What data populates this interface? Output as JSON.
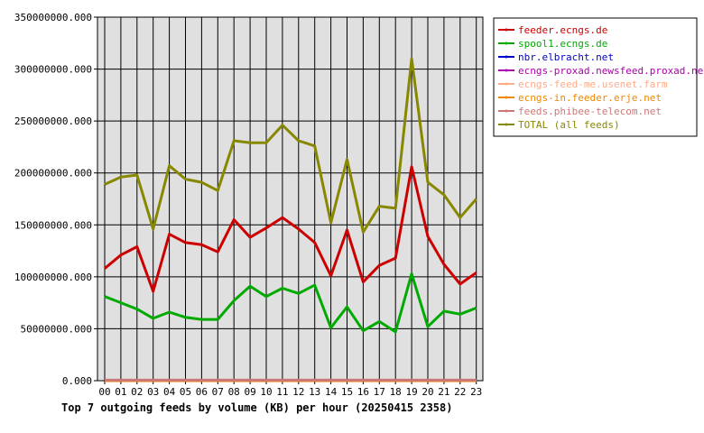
{
  "chart_data": {
    "type": "line",
    "title": "Top 7 outgoing feeds by volume (KB) per hour (20250415 2358)",
    "categories": [
      "00",
      "01",
      "02",
      "03",
      "04",
      "05",
      "06",
      "07",
      "08",
      "09",
      "10",
      "11",
      "12",
      "13",
      "14",
      "15",
      "16",
      "17",
      "18",
      "19",
      "20",
      "21",
      "22",
      "23"
    ],
    "y_ticks": [
      "0.000",
      "50000000.000",
      "100000000.000",
      "150000000.000",
      "200000000.000",
      "250000000.000",
      "300000000.000",
      "350000000.000"
    ],
    "ylim": [
      0,
      350000000
    ],
    "grid": true,
    "legend_position": "top-right",
    "series": [
      {
        "name": "feeder.ecngs.de",
        "color": "#cc0000",
        "values": [
          108000000,
          121000000,
          129000000,
          86000000,
          141000000,
          133000000,
          131000000,
          124000000,
          155000000,
          138000000,
          147000000,
          157000000,
          146000000,
          133000000,
          101000000,
          145000000,
          95000000,
          111000000,
          118000000,
          206000000,
          139000000,
          112000000,
          93000000,
          104000000
        ]
      },
      {
        "name": "spool1.ecngs.de",
        "color": "#00aa00",
        "values": [
          81000000,
          75000000,
          69000000,
          60000000,
          66000000,
          61000000,
          59000000,
          59000000,
          77000000,
          91000000,
          81000000,
          89000000,
          84000000,
          92000000,
          51000000,
          71000000,
          48000000,
          57000000,
          47000000,
          103000000,
          52000000,
          67000000,
          64000000,
          70000000
        ]
      },
      {
        "name": "nbr.elbracht.net",
        "color": "#0000cc",
        "values": [
          0,
          0,
          0,
          0,
          0,
          0,
          0,
          0,
          0,
          0,
          0,
          0,
          0,
          0,
          0,
          0,
          0,
          0,
          0,
          0,
          0,
          0,
          0,
          0
        ]
      },
      {
        "name": "ecngs-proxad.newsfeed.proxad.net",
        "color": "#aa00aa",
        "values": [
          0,
          0,
          0,
          0,
          0,
          0,
          0,
          0,
          0,
          0,
          0,
          0,
          0,
          0,
          0,
          0,
          0,
          0,
          0,
          0,
          0,
          0,
          0,
          0
        ]
      },
      {
        "name": "ecngs-feed-me.usenet.farm",
        "color": "#ffaa88",
        "values": [
          0,
          0,
          0,
          0,
          0,
          0,
          0,
          0,
          0,
          0,
          0,
          0,
          0,
          0,
          0,
          0,
          0,
          0,
          0,
          0,
          0,
          0,
          0,
          0
        ]
      },
      {
        "name": "ecngs-in.feeder.erje.net",
        "color": "#ee8800",
        "values": [
          0,
          0,
          0,
          0,
          0,
          0,
          0,
          0,
          0,
          0,
          0,
          0,
          0,
          0,
          0,
          0,
          0,
          0,
          0,
          0,
          0,
          0,
          0,
          0
        ]
      },
      {
        "name": "feeds.phibee-telecom.net",
        "color": "#cc7777",
        "values": [
          500000,
          500000,
          500000,
          500000,
          500000,
          500000,
          500000,
          500000,
          500000,
          500000,
          500000,
          500000,
          500000,
          500000,
          500000,
          500000,
          500000,
          500000,
          500000,
          500000,
          500000,
          500000,
          500000,
          500000
        ]
      },
      {
        "name": "TOTAL (all feeds)",
        "color": "#888800",
        "values": [
          189000000,
          196000000,
          198000000,
          146000000,
          207000000,
          194000000,
          191000000,
          183000000,
          231000000,
          229000000,
          229000000,
          246000000,
          231000000,
          226000000,
          152000000,
          213000000,
          143000000,
          168000000,
          166000000,
          310000000,
          191000000,
          179000000,
          157000000,
          175000000
        ]
      }
    ]
  }
}
